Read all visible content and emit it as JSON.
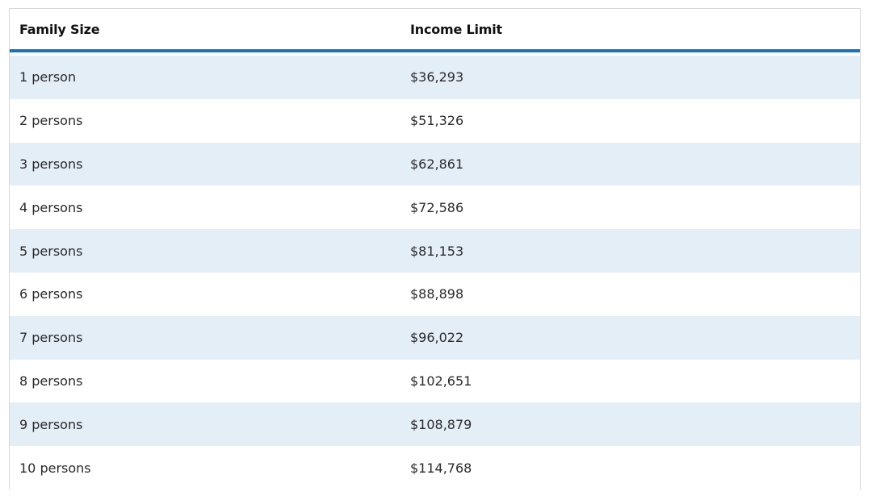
{
  "table": {
    "headers": [
      "Family Size",
      "Income Limit"
    ],
    "rows": [
      [
        "1 person",
        "$36,293"
      ],
      [
        "2 persons",
        "$51,326"
      ],
      [
        "3 persons",
        "$62,861"
      ],
      [
        "4 persons",
        "$72,586"
      ],
      [
        "5 persons",
        "$81,153"
      ],
      [
        "6 persons",
        "$88,898"
      ],
      [
        "7 persons",
        "$96,022"
      ],
      [
        "8 persons",
        "$102,651"
      ],
      [
        "9 persons",
        "$108,879"
      ],
      [
        "10 persons",
        "$114,768"
      ]
    ]
  },
  "colors": {
    "header_rule": "#1a73b9",
    "stripe": "#e4eef7",
    "border": "#d6d6d6"
  }
}
